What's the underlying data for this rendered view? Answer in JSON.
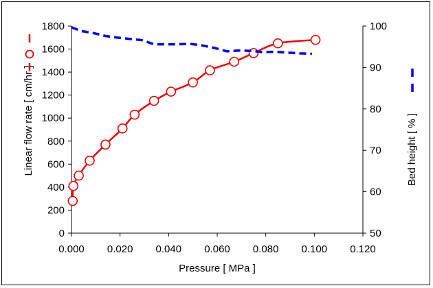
{
  "chart_data": {
    "type": "line",
    "xlabel": "Pressure [ MPa ]",
    "ylabel": "Linear flow rate [ cm/hr ]",
    "y2label": "Bed height [ % ]",
    "xlim": [
      0,
      0.12
    ],
    "ylim": [
      0,
      1800
    ],
    "y2lim": [
      50,
      100
    ],
    "x_ticks": [
      "0.000",
      "0.020",
      "0.040",
      "0.060",
      "0.080",
      "0.100",
      "0.120"
    ],
    "y_ticks": [
      "0",
      "200",
      "400",
      "600",
      "800",
      "1000",
      "1200",
      "1400",
      "1600",
      "1800"
    ],
    "y2_ticks": [
      "50",
      "60",
      "70",
      "80",
      "90",
      "100"
    ],
    "grid": false,
    "series": [
      {
        "axis": "left",
        "color": "#ee0000",
        "marker": "open-circle",
        "line": "solid",
        "x": [
          0.0005,
          0.0008,
          0.003,
          0.0075,
          0.014,
          0.021,
          0.026,
          0.034,
          0.041,
          0.05,
          0.057,
          0.067,
          0.075,
          0.085,
          0.1005
        ],
        "y": [
          280,
          410,
          500,
          630,
          770,
          910,
          1030,
          1150,
          1230,
          1310,
          1415,
          1490,
          1565,
          1650,
          1680
        ]
      },
      {
        "axis": "right",
        "color": "#0000ee",
        "marker": "none",
        "line": "dashed",
        "x": [
          0.0,
          0.004,
          0.009,
          0.014,
          0.019,
          0.024,
          0.029,
          0.034,
          0.039,
          0.044,
          0.049,
          0.054,
          0.059,
          0.064,
          0.069,
          0.074,
          0.079,
          0.084,
          0.089,
          0.094,
          0.099
        ],
        "y": [
          99.7,
          98.8,
          98.3,
          97.6,
          97.2,
          96.9,
          96.6,
          95.6,
          95.6,
          95.6,
          95.7,
          95.3,
          94.7,
          93.9,
          94.1,
          94.0,
          93.7,
          93.8,
          93.6,
          93.4,
          93.3
        ]
      }
    ]
  }
}
